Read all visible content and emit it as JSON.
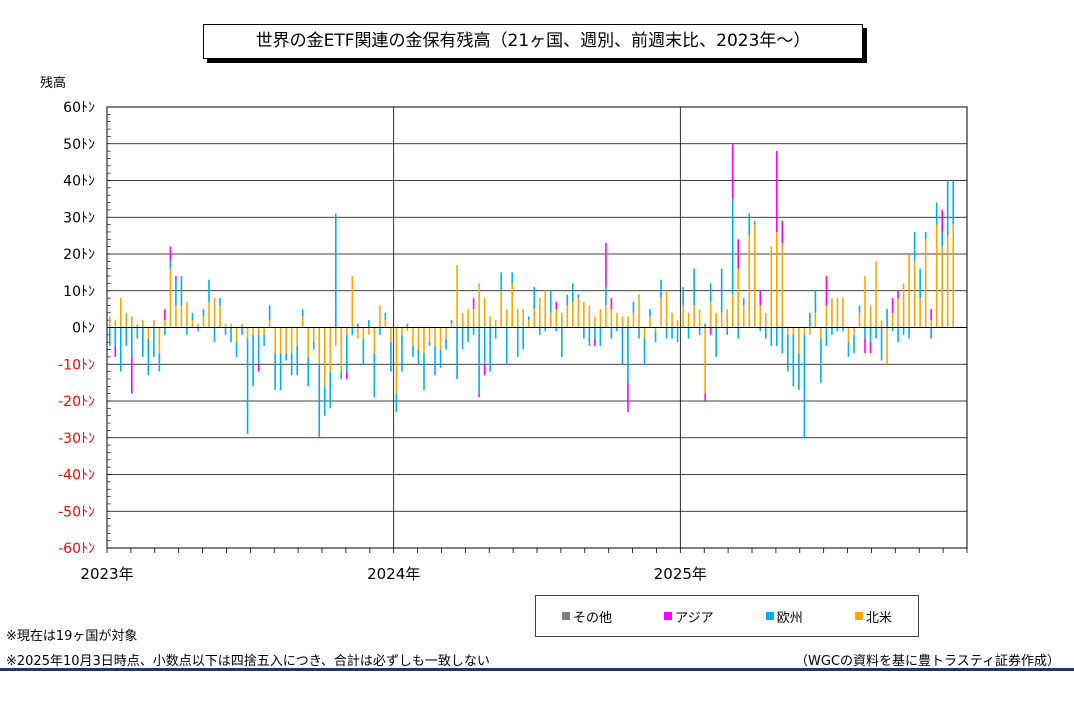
{
  "title": "世界の金ETF関連の金保有残高（21ヶ国、週別、前週末比、2023年～）",
  "notes": [
    "※現在は19ヶ国が対象",
    "※2025年10月3日時点、小数点以下は四捨五入につき、合計は必ずしも一致しない"
  ],
  "source": "（WGCの資料を基に豊トラスティ証券作成）",
  "chart_data": {
    "type": "bar",
    "stacked": true,
    "ylabel": "残高",
    "ylim": [
      -60,
      60
    ],
    "yticks": [
      {
        "value": 60,
        "label": "60ﾄﾝ"
      },
      {
        "value": 50,
        "label": "50ﾄﾝ"
      },
      {
        "value": 40,
        "label": "40ﾄﾝ"
      },
      {
        "value": 30,
        "label": "30ﾄﾝ"
      },
      {
        "value": 20,
        "label": "20ﾄﾝ"
      },
      {
        "value": 10,
        "label": "10ﾄﾝ"
      },
      {
        "value": 0,
        "label": "0ﾄﾝ"
      },
      {
        "value": -10,
        "label": "-10ﾄﾝ"
      },
      {
        "value": -20,
        "label": "-20ﾄﾝ"
      },
      {
        "value": -30,
        "label": "-30ﾄﾝ"
      },
      {
        "value": -40,
        "label": "-40ﾄﾝ"
      },
      {
        "value": -50,
        "label": "-50ﾄﾝ"
      },
      {
        "value": -60,
        "label": "-60ﾄﾝ"
      }
    ],
    "negative_tick_color": "#ff0000",
    "xlabels": [
      {
        "label": "2023年",
        "week": 0
      },
      {
        "label": "2024年",
        "week": 52
      },
      {
        "label": "2025年",
        "week": 104
      }
    ],
    "x_range_weeks": [
      0,
      156
    ],
    "grid": true,
    "legend_position": "bottom-right",
    "series": [
      {
        "name": "その他",
        "color": "#808080"
      },
      {
        "name": "アジア",
        "color": "#ff00ff"
      },
      {
        "name": "欧州",
        "color": "#00b0f0"
      },
      {
        "name": "北米",
        "color": "#ffa500"
      }
    ],
    "weeks": [
      [
        0,
        0,
        -5,
        3
      ],
      [
        0,
        -3,
        -5,
        2
      ],
      [
        0,
        0,
        -12,
        8
      ],
      [
        0,
        0,
        -5,
        4
      ],
      [
        0,
        -10,
        -8,
        3
      ],
      [
        0,
        0,
        -3,
        1
      ],
      [
        0,
        0,
        -8,
        2
      ],
      [
        0,
        0,
        -10,
        -3
      ],
      [
        0,
        0,
        -8,
        2
      ],
      [
        0,
        0,
        -5,
        -7
      ],
      [
        0,
        3,
        -2,
        2
      ],
      [
        0,
        4,
        2,
        16
      ],
      [
        0,
        1,
        7,
        6
      ],
      [
        0,
        0,
        8,
        6
      ],
      [
        0,
        0,
        -2,
        7
      ],
      [
        0,
        0,
        2,
        2
      ],
      [
        0,
        0,
        -1,
        1
      ],
      [
        0,
        0,
        2,
        3
      ],
      [
        0,
        0,
        6,
        7
      ],
      [
        0,
        0,
        -4,
        8
      ],
      [
        0,
        0,
        2,
        6
      ],
      [
        0,
        0,
        -2,
        1
      ],
      [
        0,
        0,
        -4,
        1
      ],
      [
        0,
        0,
        -4,
        -4
      ],
      [
        0,
        0,
        -2,
        1
      ],
      [
        0,
        0,
        -26,
        -3
      ],
      [
        0,
        0,
        -14,
        -2
      ],
      [
        0,
        -2,
        -8,
        -2
      ],
      [
        0,
        0,
        -3,
        -2
      ],
      [
        0,
        0,
        4,
        2
      ],
      [
        0,
        0,
        -10,
        -7
      ],
      [
        0,
        0,
        -10,
        -7
      ],
      [
        0,
        0,
        -2,
        -7
      ],
      [
        0,
        0,
        -6,
        -7
      ],
      [
        0,
        0,
        -8,
        -5
      ],
      [
        0,
        0,
        2,
        3
      ],
      [
        0,
        0,
        -8,
        -8
      ],
      [
        0,
        0,
        -2,
        -4
      ],
      [
        0,
        0,
        -20,
        -10
      ],
      [
        0,
        0,
        -8,
        -16
      ],
      [
        0,
        0,
        -10,
        -12
      ],
      [
        0,
        0,
        31,
        -5
      ],
      [
        0,
        0,
        -2,
        -12
      ],
      [
        0,
        -2,
        -10,
        -2
      ],
      [
        0,
        0,
        -2,
        14
      ],
      [
        0,
        0,
        1,
        -3
      ],
      [
        0,
        0,
        -7,
        -3
      ],
      [
        0,
        0,
        2,
        -2
      ],
      [
        0,
        0,
        -12,
        -7
      ],
      [
        0,
        0,
        -2,
        6
      ],
      [
        0,
        0,
        2,
        2
      ],
      [
        0,
        0,
        -8,
        -4
      ],
      [
        0,
        0,
        -5,
        -18
      ],
      [
        0,
        0,
        -10,
        -2
      ],
      [
        0,
        0,
        1,
        -1
      ],
      [
        0,
        0,
        -3,
        -5
      ],
      [
        0,
        0,
        -4,
        -6
      ],
      [
        0,
        0,
        -10,
        -7
      ],
      [
        0,
        0,
        -1,
        -4
      ],
      [
        0,
        0,
        -8,
        -5
      ],
      [
        0,
        0,
        -5,
        -6
      ],
      [
        0,
        0,
        -3,
        -3
      ],
      [
        0,
        0,
        1,
        1
      ],
      [
        0,
        0,
        -14,
        17
      ],
      [
        0,
        0,
        -6,
        4
      ],
      [
        0,
        0,
        -4,
        5
      ],
      [
        0,
        3,
        -2,
        5
      ],
      [
        0,
        -1,
        -18,
        12
      ],
      [
        0,
        -3,
        -10,
        8
      ],
      [
        0,
        0,
        -12,
        3
      ],
      [
        0,
        0,
        -3,
        2
      ],
      [
        0,
        0,
        5,
        10
      ],
      [
        0,
        0,
        -10,
        5
      ],
      [
        0,
        0,
        3,
        12
      ],
      [
        0,
        0,
        -8,
        5
      ],
      [
        0,
        0,
        -6,
        5
      ],
      [
        0,
        0,
        1,
        2
      ],
      [
        0,
        0,
        6,
        5
      ],
      [
        0,
        0,
        -2,
        8
      ],
      [
        0,
        0,
        -1,
        10
      ],
      [
        0,
        0,
        6,
        4
      ],
      [
        0,
        2,
        -1,
        5
      ],
      [
        0,
        0,
        -8,
        4
      ],
      [
        0,
        0,
        3,
        6
      ],
      [
        0,
        0,
        5,
        7
      ],
      [
        0,
        0,
        1,
        8
      ],
      [
        0,
        0,
        -3,
        7
      ],
      [
        0,
        0,
        -5,
        6
      ],
      [
        0,
        -2,
        -3,
        3
      ],
      [
        0,
        0,
        -5,
        5
      ],
      [
        0,
        12,
        5,
        6
      ],
      [
        0,
        3,
        -3,
        5
      ],
      [
        0,
        0,
        -1,
        4
      ],
      [
        0,
        0,
        -10,
        3
      ],
      [
        0,
        -8,
        -15,
        3
      ],
      [
        0,
        0,
        3,
        4
      ],
      [
        0,
        0,
        -3,
        9
      ],
      [
        0,
        0,
        -7,
        -3
      ],
      [
        0,
        0,
        2,
        3
      ],
      [
        0,
        0,
        -3,
        -1
      ],
      [
        0,
        0,
        5,
        8
      ],
      [
        0,
        0,
        -3,
        10
      ],
      [
        0,
        0,
        -3,
        4
      ],
      [
        0,
        0,
        -4,
        2
      ],
      [
        0,
        0,
        5,
        6
      ],
      [
        0,
        0,
        -3,
        4
      ],
      [
        0,
        0,
        10,
        6
      ],
      [
        0,
        0,
        -2,
        5
      ],
      [
        0,
        -2,
        1,
        -18
      ],
      [
        0,
        -2,
        5,
        7
      ],
      [
        0,
        0,
        -8,
        4
      ],
      [
        0,
        0,
        12,
        4
      ],
      [
        0,
        0,
        -2,
        5
      ],
      [
        0,
        15,
        26,
        9
      ],
      [
        0,
        8,
        -3,
        16
      ],
      [
        0,
        0,
        2,
        6
      ],
      [
        0,
        0,
        6,
        25
      ],
      [
        0,
        0,
        1,
        28
      ],
      [
        0,
        4,
        -1,
        6
      ],
      [
        0,
        0,
        -3,
        4
      ],
      [
        0,
        0,
        -5,
        22
      ],
      [
        0,
        22,
        -5,
        26
      ],
      [
        0,
        6,
        -7,
        23
      ],
      [
        0,
        0,
        -10,
        -2
      ],
      [
        0,
        0,
        -14,
        -2
      ],
      [
        0,
        0,
        -10,
        -7
      ],
      [
        0,
        0,
        -28,
        -2
      ],
      [
        0,
        0,
        4,
        -2
      ],
      [
        0,
        0,
        6,
        4
      ],
      [
        0,
        0,
        -12,
        -3
      ],
      [
        0,
        8,
        -5,
        6
      ],
      [
        0,
        0,
        -2,
        8
      ],
      [
        0,
        0,
        -1,
        8
      ],
      [
        0,
        0,
        -1,
        8
      ],
      [
        0,
        0,
        -4,
        -4
      ],
      [
        0,
        0,
        -5,
        -2
      ],
      [
        0,
        0,
        2,
        4
      ],
      [
        0,
        -4,
        -3,
        14
      ],
      [
        0,
        -3,
        -4,
        6
      ],
      [
        0,
        0,
        -3,
        18
      ],
      [
        0,
        0,
        -9,
        2
      ],
      [
        0,
        0,
        5,
        -10
      ],
      [
        0,
        4,
        -1,
        4
      ],
      [
        0,
        2,
        -4,
        8
      ],
      [
        0,
        0,
        -2,
        12
      ],
      [
        0,
        0,
        -3,
        20
      ],
      [
        0,
        0,
        8,
        18
      ],
      [
        0,
        0,
        8,
        8
      ],
      [
        0,
        0,
        2,
        24
      ],
      [
        0,
        3,
        -3,
        2
      ],
      [
        0,
        0,
        6,
        28
      ],
      [
        0,
        6,
        4,
        22
      ],
      [
        0,
        0,
        15,
        25
      ],
      [
        0,
        0,
        12,
        28
      ]
    ]
  }
}
